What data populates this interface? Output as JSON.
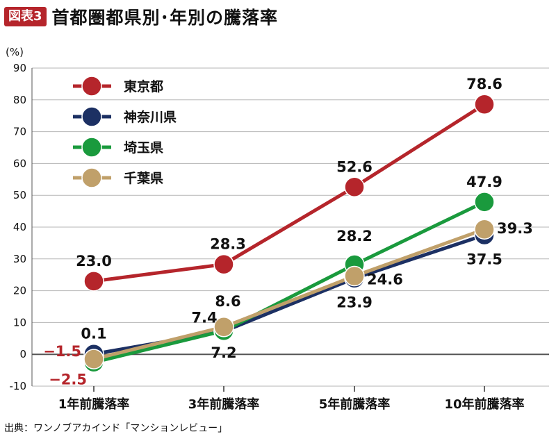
{
  "header": {
    "badge": "図表3",
    "title": "首都圏都県別･年別の騰落率"
  },
  "source": "出典：ワンノブアカインド「マンションレビュー」",
  "chart_data": {
    "type": "line",
    "title": "首都圏都県別･年別の騰落率",
    "ylabel_unit": "(%)",
    "ylim": [
      -10,
      90
    ],
    "yticks": [
      -10,
      0,
      10,
      20,
      30,
      40,
      50,
      60,
      70,
      80,
      90
    ],
    "categories": [
      "1年前騰落率",
      "3年前騰落率",
      "5年前騰落率",
      "10年前騰落率"
    ],
    "legend_position": "top-left",
    "grid": true,
    "series": [
      {
        "name": "東京都",
        "color": "#b5252b",
        "values": [
          23.0,
          28.3,
          52.6,
          78.6
        ],
        "labels": [
          "23.0",
          "28.3",
          "52.6",
          "78.6"
        ],
        "label_color": "#111111"
      },
      {
        "name": "神奈川県",
        "color": "#1c3063",
        "values": [
          0.1,
          7.2,
          23.9,
          37.5
        ],
        "labels": [
          "0.1",
          "7.2",
          "23.9",
          "37.5"
        ],
        "label_color": "#111111"
      },
      {
        "name": "埼玉県",
        "color": "#1a9a3d",
        "values": [
          -2.5,
          7.4,
          28.2,
          47.9
        ],
        "labels": [
          "−2.5",
          "7.4",
          "28.2",
          "47.9"
        ],
        "label_color": "#111111"
      },
      {
        "name": "千葉県",
        "color": "#c0a06a",
        "values": [
          -1.5,
          8.6,
          24.6,
          39.3
        ],
        "labels": [
          "−1.5",
          "8.6",
          "24.6",
          "39.3"
        ],
        "label_color": "#111111"
      }
    ],
    "negative_label_color": "#b5252b"
  }
}
